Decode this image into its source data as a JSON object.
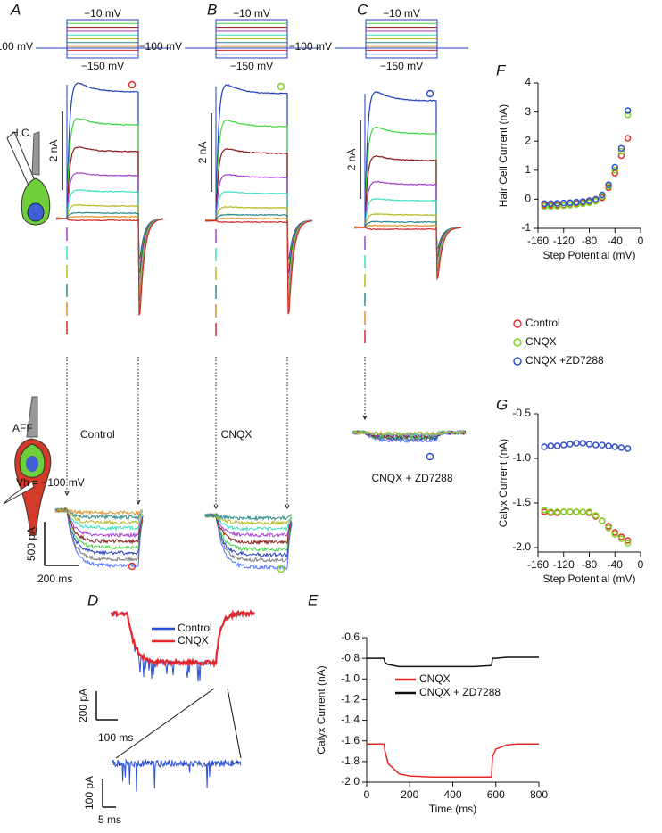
{
  "panels": {
    "A": {
      "letter": "A",
      "protocol": {
        "top": "−10 mV",
        "hold": "−100 mV",
        "bottom": "−150 mV"
      },
      "cell_label": "H.C.",
      "scale_nA": "2 nA",
      "aff_label": "AFF",
      "vh": "Vh = −100 mV",
      "condition": "Control",
      "scale_pA": "500 pA",
      "scale_ms": "200 ms"
    },
    "B": {
      "letter": "B",
      "protocol": {
        "top": "−10 mV",
        "hold": "−100 mV",
        "bottom": "−150 mV"
      },
      "scale_nA": "2 nA",
      "condition": "CNQX"
    },
    "C": {
      "letter": "C",
      "protocol": {
        "top": "−10 mV",
        "hold": "−100 mV",
        "bottom": "−150 mV"
      },
      "scale_nA": "2 nA",
      "condition": "CNQX + ZD7288"
    },
    "D": {
      "letter": "D",
      "legend": [
        {
          "name": "Control",
          "color": "#2a4fd6"
        },
        {
          "name": "CNQX",
          "color": "#e8262a"
        }
      ],
      "scale_pA": "200 pA",
      "scale_ms": "100 ms",
      "inset_scale_pA": "100 pA",
      "inset_scale_ms": "5 ms"
    },
    "E": {
      "letter": "E"
    },
    "F": {
      "letter": "F"
    },
    "G": {
      "letter": "G"
    }
  },
  "chart_data": [
    {
      "type": "scatter",
      "xlabel": "Step Potential (mV)",
      "ylabel": "Hair Cell Current (nA)",
      "x": [
        -150,
        -140,
        -130,
        -120,
        -110,
        -100,
        -90,
        -80,
        -70,
        -60,
        -50,
        -40,
        -30,
        -20
      ],
      "xlim": [
        -160,
        0
      ],
      "xticks": [
        -160,
        -120,
        -80,
        -40,
        0
      ],
      "ylim": [
        -1,
        4
      ],
      "yticks": [
        -1,
        0,
        1,
        2,
        3,
        4
      ],
      "legend": true,
      "series": [
        {
          "name": "Control",
          "color": "#e0302a",
          "values": [
            -0.2,
            -0.2,
            -0.2,
            -0.2,
            -0.18,
            -0.15,
            -0.12,
            -0.1,
            -0.05,
            0.05,
            0.4,
            0.9,
            1.5,
            2.1
          ]
        },
        {
          "name": "CNQX",
          "color": "#7ed321",
          "values": [
            -0.25,
            -0.25,
            -0.24,
            -0.22,
            -0.2,
            -0.18,
            -0.15,
            -0.12,
            -0.07,
            0.1,
            0.45,
            1.0,
            1.65,
            2.9
          ]
        },
        {
          "name": "CNQX +ZD7288",
          "color": "#2f4fc8",
          "values": [
            -0.15,
            -0.15,
            -0.14,
            -0.13,
            -0.12,
            -0.1,
            -0.08,
            -0.05,
            0.0,
            0.15,
            0.5,
            1.1,
            1.75,
            3.05
          ]
        }
      ]
    },
    {
      "type": "scatter",
      "xlabel": "Step Potential (mV)",
      "ylabel": "Calyx Current (nA)",
      "x": [
        -150,
        -140,
        -130,
        -120,
        -110,
        -100,
        -90,
        -80,
        -70,
        -60,
        -50,
        -40,
        -30,
        -20
      ],
      "xlim": [
        -160,
        0
      ],
      "xticks": [
        -160,
        -120,
        -80,
        -40,
        0
      ],
      "ylim": [
        -2.05,
        -0.5
      ],
      "yticks": [
        {
          "value": -2,
          "label": "-2.0"
        },
        -1.5,
        {
          "value": -1,
          "label": "-1.0"
        },
        -0.5
      ],
      "legend": false,
      "series": [
        {
          "name": "Control",
          "color": "#e0302a",
          "values": [
            -1.6,
            -1.61,
            -1.61,
            -1.6,
            -1.6,
            -1.6,
            -1.6,
            -1.61,
            -1.65,
            -1.7,
            -1.76,
            -1.83,
            -1.88,
            -1.92
          ]
        },
        {
          "name": "CNQX",
          "color": "#7ed321",
          "values": [
            -1.58,
            -1.6,
            -1.6,
            -1.6,
            -1.6,
            -1.6,
            -1.6,
            -1.6,
            -1.64,
            -1.7,
            -1.78,
            -1.85,
            -1.9,
            -1.95
          ]
        },
        {
          "name": "CNQX +ZD7288",
          "color": "#2f4fc8",
          "values": [
            -0.87,
            -0.86,
            -0.86,
            -0.85,
            -0.84,
            -0.83,
            -0.83,
            -0.84,
            -0.85,
            -0.85,
            -0.86,
            -0.87,
            -0.88,
            -0.89
          ]
        }
      ]
    },
    {
      "type": "line",
      "xlabel": "Time (ms)",
      "ylabel": "Calyx Current (nA)",
      "x": [
        0,
        80,
        85,
        100,
        150,
        200,
        300,
        400,
        500,
        580,
        585,
        600,
        650,
        700,
        800
      ],
      "xlim": [
        0,
        800
      ],
      "xticks": [
        0,
        200,
        400,
        600,
        800
      ],
      "ylim": [
        -2,
        -0.6
      ],
      "yticks": [
        {
          "value": -2,
          "label": "-2.0"
        },
        -1.8,
        -1.6,
        -1.4,
        -1.2,
        {
          "value": -1,
          "label": "-1.0"
        },
        -0.8,
        -0.6
      ],
      "legend": true,
      "series": [
        {
          "name": "CNQX",
          "color": "#e8262a",
          "values": [
            -1.63,
            -1.63,
            -1.7,
            -1.82,
            -1.92,
            -1.94,
            -1.95,
            -1.95,
            -1.95,
            -1.95,
            -1.75,
            -1.68,
            -1.64,
            -1.63,
            -1.63
          ]
        },
        {
          "name": "CNQX + ZD7288",
          "color": "#111111",
          "values": [
            -0.8,
            -0.8,
            -0.84,
            -0.86,
            -0.88,
            -0.88,
            -0.88,
            -0.88,
            -0.88,
            -0.87,
            -0.8,
            -0.8,
            -0.79,
            -0.79,
            -0.79
          ]
        }
      ]
    }
  ]
}
